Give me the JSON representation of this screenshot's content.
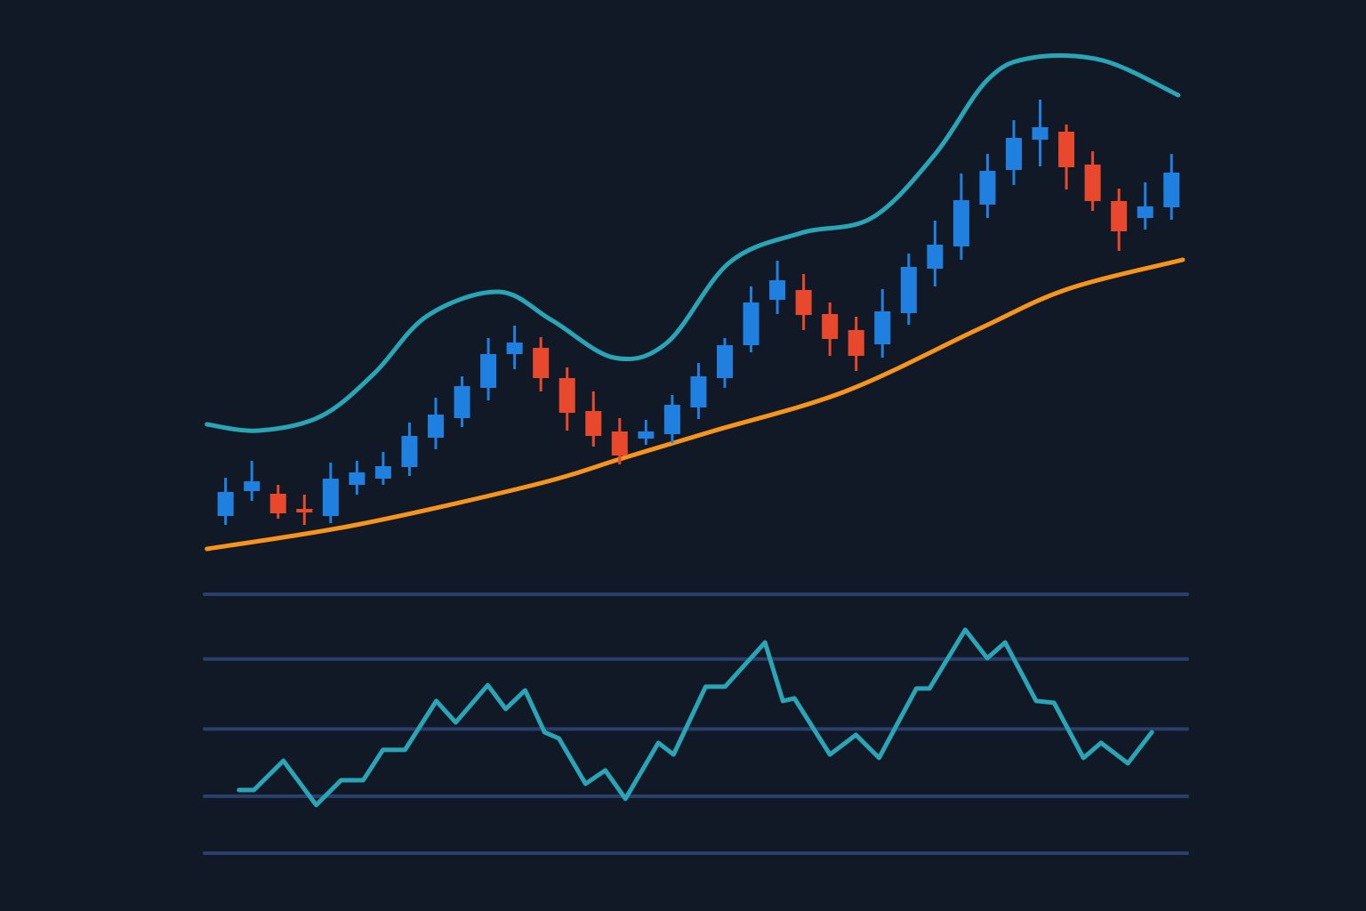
{
  "chart_data": [
    {
      "type": "candlestick",
      "x": [
        0,
        1,
        2,
        3,
        4,
        5,
        6,
        7,
        8,
        9,
        10,
        11,
        12,
        13,
        14,
        15,
        16,
        17,
        18,
        19,
        20,
        21,
        22,
        23,
        24,
        25,
        26,
        27,
        28,
        29,
        30,
        31,
        32,
        33,
        34,
        35,
        36
      ],
      "open": [
        60,
        88,
        85,
        68,
        60,
        95,
        102,
        115,
        148,
        170,
        204,
        242,
        249,
        215,
        178,
        155,
        147,
        152,
        182,
        215,
        252,
        303,
        314,
        287,
        269,
        253,
        288,
        338,
        363,
        410,
        449,
        483,
        492,
        455,
        414,
        395,
        407
      ],
      "high": [
        103,
        122,
        95,
        84,
        120,
        122,
        132,
        165,
        193,
        217,
        260,
        274,
        261,
        227,
        200,
        170,
        168,
        196,
        232,
        260,
        318,
        347,
        332,
        300,
        284,
        315,
        355,
        392,
        445,
        467,
        505,
        528,
        500,
        470,
        428,
        435,
        467
      ],
      "low": [
        50,
        77,
        57,
        50,
        52,
        84,
        95,
        105,
        135,
        160,
        190,
        225,
        200,
        156,
        138,
        118,
        140,
        142,
        169,
        204,
        244,
        287,
        269,
        240,
        223,
        238,
        275,
        318,
        348,
        395,
        432,
        453,
        427,
        403,
        358,
        382,
        393
      ],
      "close": [
        87,
        99,
        63,
        64,
        102,
        109,
        116,
        150,
        174,
        206,
        242,
        255,
        215,
        176,
        150,
        128,
        155,
        185,
        217,
        252,
        300,
        325,
        286,
        259,
        240,
        290,
        340,
        365,
        415,
        448,
        485,
        497,
        452,
        414,
        380,
        408,
        446
      ],
      "up_color": "#1f80e0",
      "down_color": "#e8492c",
      "series": [
        {
          "color": "#2aa5b6",
          "x": [
            -0.71,
            1.25,
            3.62,
            5.65,
            7.68,
            10.39,
            12.42,
            14.78,
            16.81,
            19.18,
            21.89,
            24.59,
            26.96,
            28.99,
            30.68,
            33.39,
            36.26
          ],
          "values": [
            163,
            156,
            172,
            220,
            285,
            312,
            280,
            238,
            255,
            345,
            378,
            395,
            465,
            550,
            575,
            572,
            533
          ]
        },
        {
          "color": "#f7941d",
          "x": [
            -0.71,
            4.97,
            11.74,
            15.12,
            18.5,
            23.58,
            28.65,
            32.04,
            36.43
          ],
          "values": [
            23,
            50,
            95,
            125,
            155,
            200,
            270,
            315,
            348
          ]
        }
      ],
      "xlim": [
        -0.8,
        36.6
      ],
      "ylim": [
        0,
        600
      ]
    },
    {
      "type": "line",
      "x": [
        0.51,
        1.08,
        2.2,
        3.45,
        4.4,
        5.24,
        5.99,
        6.83,
        8.02,
        8.76,
        9.98,
        10.66,
        11.4,
        12.14,
        12.69,
        13.7,
        14.45,
        15.22,
        16.47,
        17.05,
        18.27,
        19.01,
        20.53,
        21.21,
        21.65,
        23.0,
        23.99,
        24.87,
        26.29,
        26.79,
        28.15,
        28.99,
        29.67,
        30.85,
        31.53,
        32.65,
        33.32,
        34.34,
        35.25
      ],
      "values": [
        24.4,
        24.4,
        35.7,
        18.6,
        28.2,
        28.2,
        39.9,
        39.9,
        58.8,
        50.5,
        64.9,
        55.7,
        62.9,
        46.7,
        44.3,
        26.8,
        32.0,
        21.0,
        42.6,
        38.1,
        64.3,
        64.3,
        81.4,
        58.8,
        59.8,
        38.1,
        45.7,
        36.8,
        63.6,
        63.6,
        86.3,
        75.3,
        81.4,
        58.8,
        58.1,
        36.8,
        42.6,
        34.7,
        46.7
      ],
      "color": "#2aa5b6",
      "xlim": [
        -0.8,
        36.6
      ],
      "ylim": [
        0,
        100
      ],
      "yticks": [
        0,
        22,
        48,
        75,
        100
      ],
      "grid": true,
      "grid_color": "#2b3f6c"
    }
  ]
}
